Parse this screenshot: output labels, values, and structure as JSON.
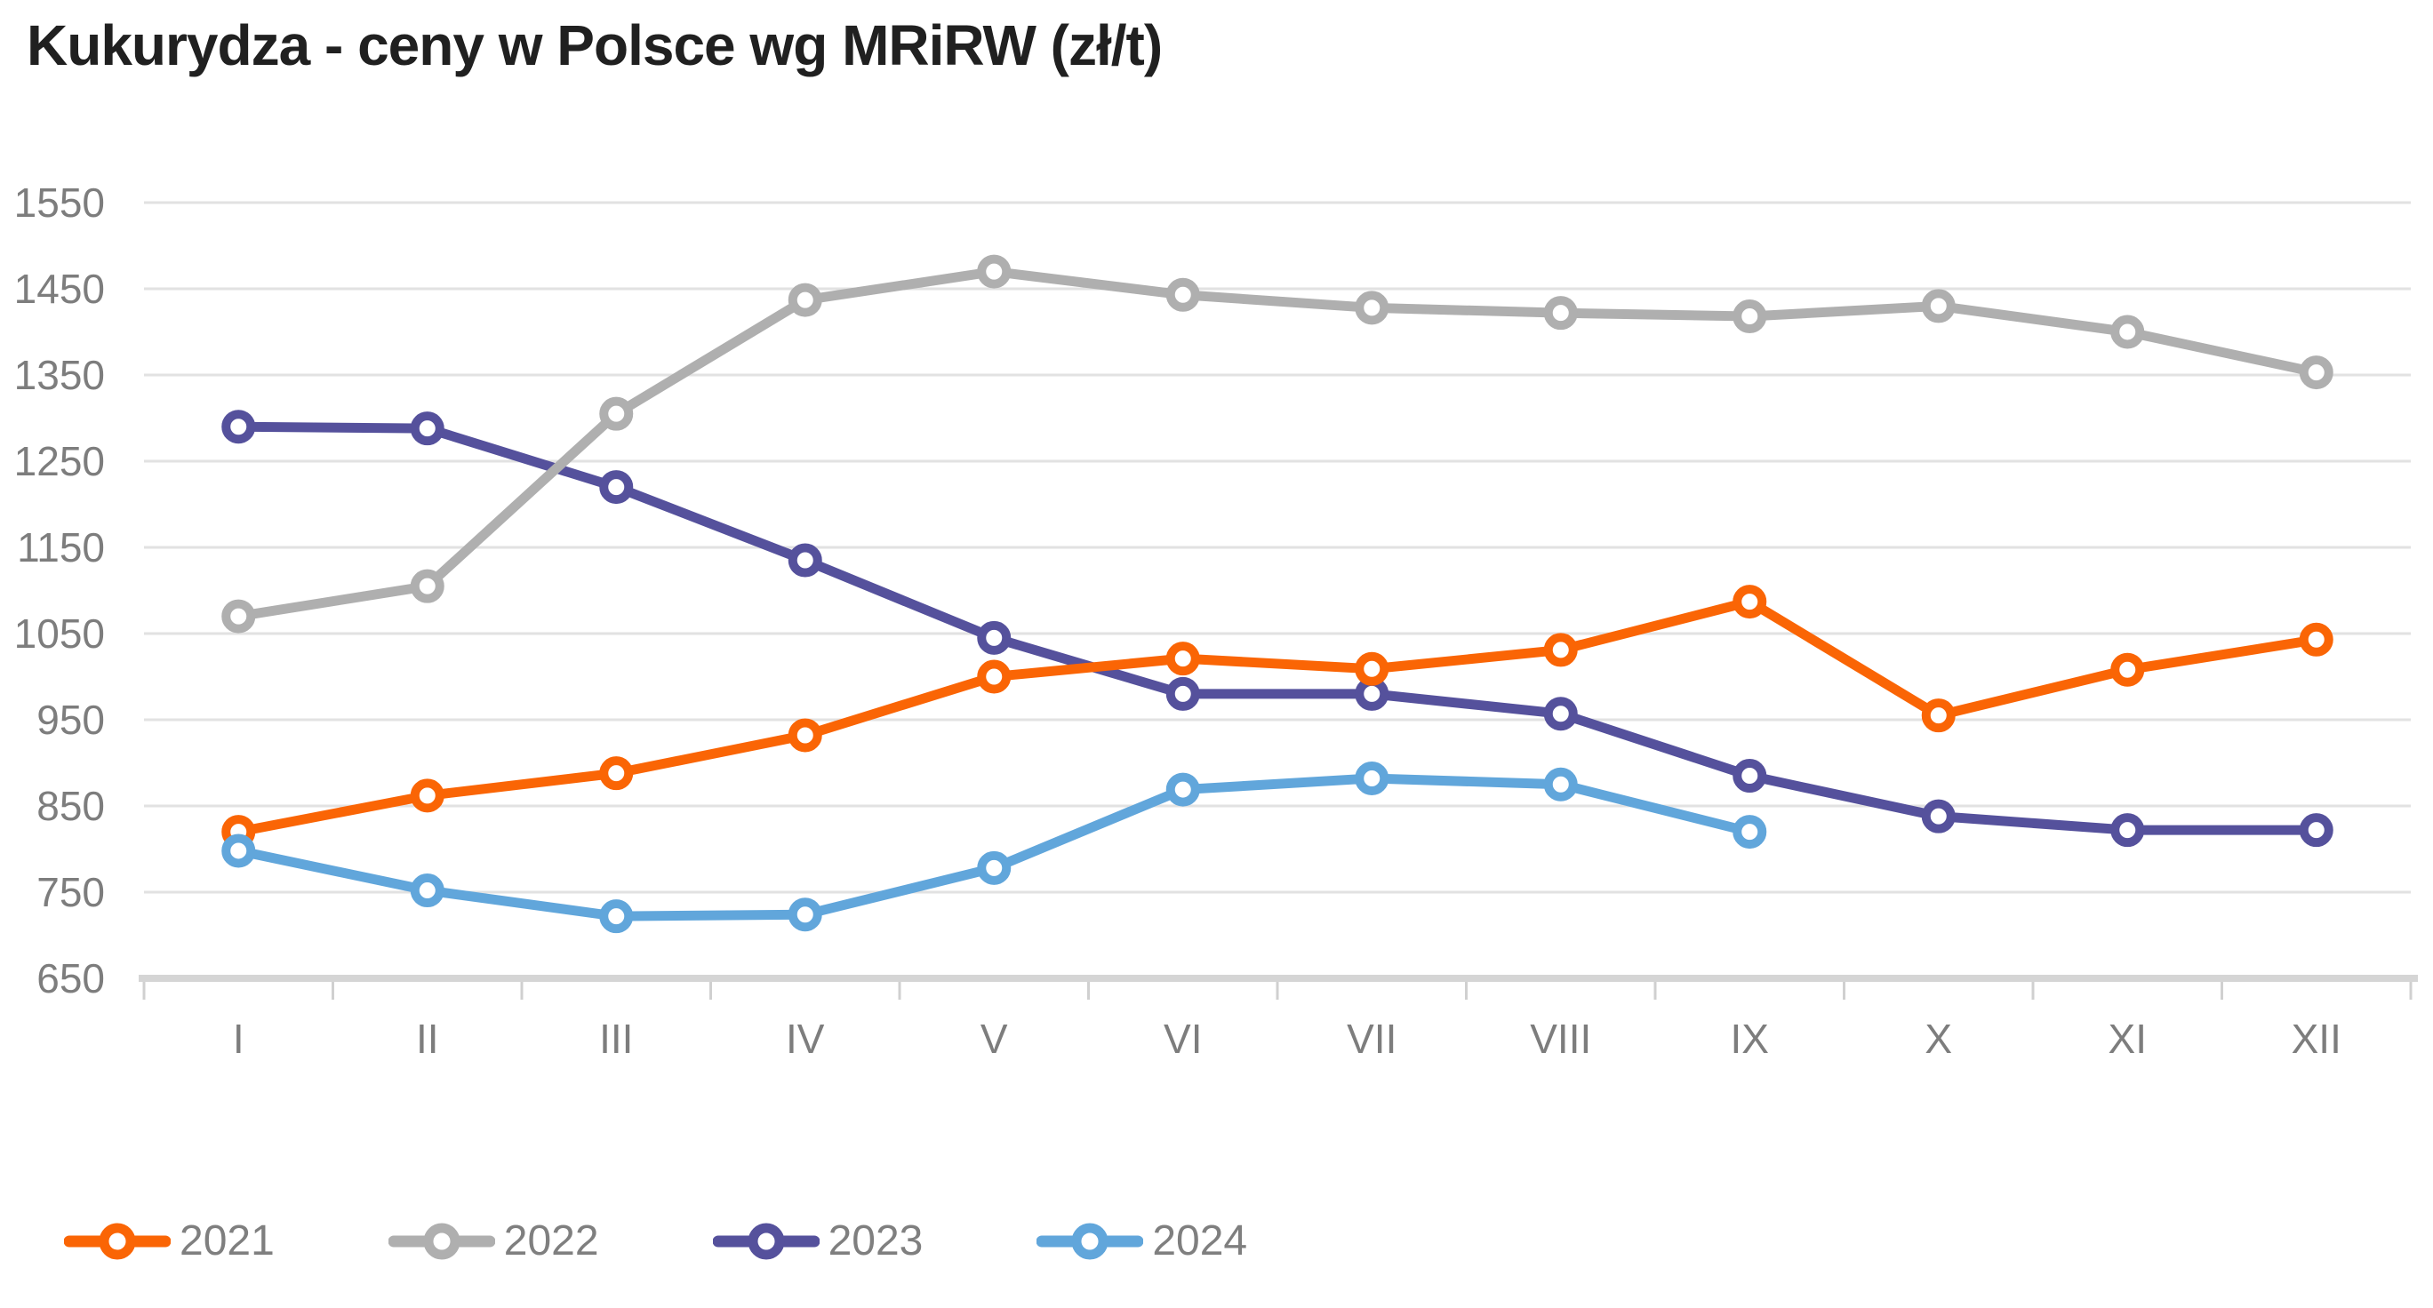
{
  "title": "Kukurydza - ceny w Polsce wg MRiRW (zł/t)",
  "colors": {
    "series_2021": "#FA6505",
    "series_2022": "#AFAFAF",
    "series_2023": "#55519C",
    "series_2024": "#61A6DB",
    "gridline": "#E2E2E2",
    "axis_line": "#D5D5D5",
    "tick": "#D0D0D0",
    "axis_text": "#7D7D7D",
    "legend_text": "#7F7F7F",
    "title_text": "#202020",
    "marker_fill": "#FFFFFF",
    "background": "#FFFFFF"
  },
  "chart_data": {
    "type": "line",
    "title": "Kukurydza - ceny w Polsce wg MRiRW (zł/t)",
    "categories": [
      "I",
      "II",
      "III",
      "IV",
      "V",
      "VI",
      "VII",
      "VIII",
      "IX",
      "X",
      "XI",
      "XII"
    ],
    "series": [
      {
        "name": "2021",
        "color": "#FA6505",
        "values": [
          820,
          862,
          888,
          932,
          1000,
          1021,
          1009,
          1031,
          1087,
          955,
          1008,
          1043
        ]
      },
      {
        "name": "2022",
        "color": "#AFAFAF",
        "values": [
          1070,
          1105,
          1305,
          1437,
          1470,
          1443,
          1428,
          1422,
          1418,
          1430,
          1400,
          1353
        ]
      },
      {
        "name": "2023",
        "color": "#55519C",
        "values": [
          1290,
          1288,
          1220,
          1135,
          1045,
          980,
          980,
          957,
          885,
          838,
          822,
          822
        ]
      },
      {
        "name": "2024",
        "color": "#61A6DB",
        "values": [
          798,
          752,
          722,
          724,
          778,
          869,
          882,
          875,
          820,
          null,
          null,
          null
        ]
      }
    ],
    "draw_order": [
      "2023",
      "2022",
      "2021",
      "2024"
    ],
    "xlabel": "",
    "ylabel": "",
    "ylim": [
      650,
      1550
    ],
    "yticks": [
      650,
      750,
      850,
      950,
      1050,
      1150,
      1250,
      1350,
      1450,
      1550
    ],
    "grid": true,
    "marker": "open-circle",
    "legend_position": "bottom-left"
  },
  "legend": {
    "items": [
      {
        "label": "2021"
      },
      {
        "label": "2022"
      },
      {
        "label": "2023"
      },
      {
        "label": "2024"
      }
    ]
  }
}
